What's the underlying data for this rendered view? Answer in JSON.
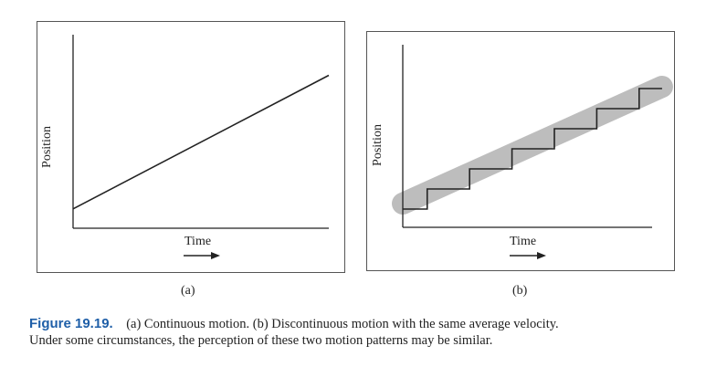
{
  "figure": {
    "number": "Figure 19.19.",
    "caption_line1": "(a) Continuous motion. (b) Discontinuous motion with the same average velocity.",
    "caption_line2": "Under some circumstances, the perception of these two motion patterns may be similar.",
    "caption_color": "#1f5fa8"
  },
  "chart_data": [
    {
      "type": "line",
      "panel_label": "(a)",
      "xlabel": "Time",
      "ylabel": "Position",
      "title": "",
      "grid": false,
      "ticks": false,
      "series": [
        {
          "style": "continuous",
          "x": [
            0,
            1
          ],
          "y": [
            0.1,
            0.79
          ]
        }
      ],
      "xlim": [
        0,
        1
      ],
      "ylim": [
        0,
        1
      ]
    },
    {
      "type": "line",
      "panel_label": "(b)",
      "xlabel": "Time",
      "ylabel": "Position",
      "title": "",
      "grid": false,
      "ticks": false,
      "series": [
        {
          "style": "step",
          "x": [
            0,
            0.098,
            0.098,
            0.268,
            0.268,
            0.438,
            0.438,
            0.608,
            0.608,
            0.778,
            0.778,
            0.948,
            0.948,
            1.04
          ],
          "y": [
            0.1,
            0.1,
            0.21,
            0.21,
            0.32,
            0.32,
            0.43,
            0.43,
            0.54,
            0.54,
            0.65,
            0.65,
            0.76,
            0.76
          ]
        },
        {
          "style": "band",
          "color": "#bdbdbd",
          "x": [
            0,
            1.04
          ],
          "y": [
            0.13,
            0.77
          ]
        }
      ],
      "xlim": [
        0,
        1
      ],
      "ylim": [
        0,
        1
      ]
    }
  ]
}
